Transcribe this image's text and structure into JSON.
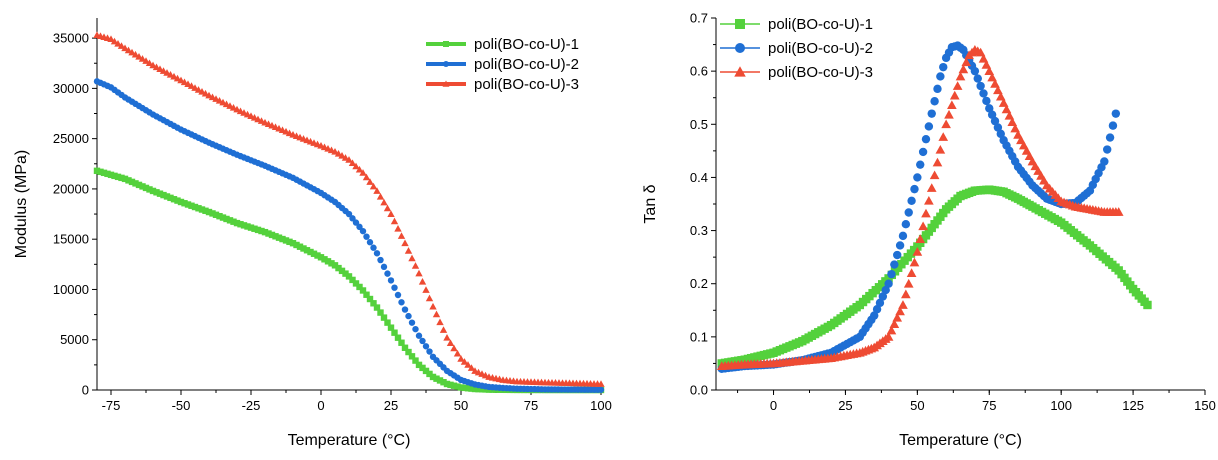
{
  "chart_data": [
    {
      "type": "line",
      "xlabel": "Temperature (°C)",
      "ylabel": "Modulus (MPa)",
      "xlim": [
        -80,
        100
      ],
      "ylim": [
        0,
        37000
      ],
      "xticks": [
        -75,
        -50,
        -25,
        0,
        25,
        50,
        75,
        100
      ],
      "yticks": [
        0,
        5000,
        10000,
        15000,
        20000,
        25000,
        30000,
        35000
      ],
      "grid": false,
      "legend": "top-right",
      "series": [
        {
          "name": "poli(BO-co-U)-1",
          "color": "#54d13c",
          "marker": "square",
          "points": [
            [
              -80,
              21800
            ],
            [
              -70,
              21000
            ],
            [
              -60,
              19800
            ],
            [
              -50,
              18700
            ],
            [
              -40,
              17700
            ],
            [
              -30,
              16600
            ],
            [
              -20,
              15700
            ],
            [
              -10,
              14600
            ],
            [
              0,
              13200
            ],
            [
              5,
              12400
            ],
            [
              10,
              11300
            ],
            [
              15,
              9900
            ],
            [
              20,
              8200
            ],
            [
              25,
              6200
            ],
            [
              30,
              4200
            ],
            [
              35,
              2500
            ],
            [
              40,
              1300
            ],
            [
              45,
              600
            ],
            [
              50,
              250
            ],
            [
              55,
              100
            ],
            [
              60,
              40
            ],
            [
              65,
              20
            ],
            [
              70,
              10
            ],
            [
              80,
              5
            ],
            [
              100,
              2
            ]
          ]
        },
        {
          "name": "poli(BO-co-U)-2",
          "color": "#1f6fd4",
          "marker": "circle",
          "points": [
            [
              -80,
              30700
            ],
            [
              -75,
              30100
            ],
            [
              -70,
              29100
            ],
            [
              -60,
              27400
            ],
            [
              -50,
              25900
            ],
            [
              -40,
              24600
            ],
            [
              -30,
              23400
            ],
            [
              -20,
              22300
            ],
            [
              -10,
              21100
            ],
            [
              0,
              19600
            ],
            [
              5,
              18700
            ],
            [
              10,
              17500
            ],
            [
              15,
              15800
            ],
            [
              20,
              13600
            ],
            [
              25,
              10900
            ],
            [
              30,
              8000
            ],
            [
              35,
              5400
            ],
            [
              40,
              3300
            ],
            [
              45,
              1900
            ],
            [
              50,
              1000
            ],
            [
              55,
              550
            ],
            [
              60,
              300
            ],
            [
              65,
              200
            ],
            [
              70,
              130
            ],
            [
              80,
              60
            ],
            [
              100,
              20
            ]
          ]
        },
        {
          "name": "poli(BO-co-U)-3",
          "color": "#ee4b33",
          "marker": "triangle",
          "points": [
            [
              -80,
              35300
            ],
            [
              -75,
              34900
            ],
            [
              -70,
              34000
            ],
            [
              -60,
              32300
            ],
            [
              -50,
              30800
            ],
            [
              -40,
              29300
            ],
            [
              -30,
              27900
            ],
            [
              -20,
              26600
            ],
            [
              -10,
              25400
            ],
            [
              0,
              24300
            ],
            [
              5,
              23700
            ],
            [
              10,
              22900
            ],
            [
              15,
              21600
            ],
            [
              20,
              19800
            ],
            [
              25,
              17500
            ],
            [
              30,
              14600
            ],
            [
              35,
              11600
            ],
            [
              40,
              8300
            ],
            [
              45,
              5200
            ],
            [
              50,
              3100
            ],
            [
              55,
              1900
            ],
            [
              60,
              1300
            ],
            [
              65,
              1000
            ],
            [
              70,
              850
            ],
            [
              80,
              750
            ],
            [
              90,
              680
            ],
            [
              100,
              600
            ]
          ]
        }
      ]
    },
    {
      "type": "scatter",
      "xlabel": "Temperature (°C)",
      "ylabel": "Tan δ",
      "xlim": [
        -20,
        150
      ],
      "ylim": [
        0.0,
        0.7
      ],
      "xticks": [
        0,
        25,
        50,
        75,
        100,
        125,
        150
      ],
      "yticks": [
        0.0,
        0.1,
        0.2,
        0.3,
        0.4,
        0.5,
        0.6,
        0.7
      ],
      "grid": false,
      "legend": "top-left",
      "series": [
        {
          "name": "poli(BO-co-U)-1",
          "color": "#54d13c",
          "marker": "square",
          "points": [
            [
              -18,
              0.05
            ],
            [
              -10,
              0.057
            ],
            [
              0,
              0.07
            ],
            [
              10,
              0.092
            ],
            [
              20,
              0.122
            ],
            [
              30,
              0.16
            ],
            [
              40,
              0.21
            ],
            [
              50,
              0.27
            ],
            [
              55,
              0.305
            ],
            [
              60,
              0.34
            ],
            [
              65,
              0.365
            ],
            [
              70,
              0.375
            ],
            [
              75,
              0.377
            ],
            [
              80,
              0.373
            ],
            [
              85,
              0.36
            ],
            [
              90,
              0.345
            ],
            [
              100,
              0.315
            ],
            [
              110,
              0.272
            ],
            [
              120,
              0.225
            ],
            [
              125,
              0.19
            ],
            [
              130,
              0.16
            ]
          ]
        },
        {
          "name": "poli(BO-co-U)-2",
          "color": "#1f6fd4",
          "marker": "circle",
          "points": [
            [
              -18,
              0.04
            ],
            [
              -10,
              0.045
            ],
            [
              0,
              0.048
            ],
            [
              10,
              0.056
            ],
            [
              20,
              0.07
            ],
            [
              30,
              0.1
            ],
            [
              35,
              0.14
            ],
            [
              40,
              0.2
            ],
            [
              45,
              0.29
            ],
            [
              50,
              0.4
            ],
            [
              55,
              0.52
            ],
            [
              58,
              0.59
            ],
            [
              60,
              0.625
            ],
            [
              62,
              0.645
            ],
            [
              64,
              0.648
            ],
            [
              66,
              0.64
            ],
            [
              70,
              0.6
            ],
            [
              75,
              0.53
            ],
            [
              80,
              0.47
            ],
            [
              85,
              0.42
            ],
            [
              90,
              0.385
            ],
            [
              95,
              0.36
            ],
            [
              100,
              0.35
            ],
            [
              105,
              0.352
            ],
            [
              110,
              0.375
            ],
            [
              115,
              0.43
            ],
            [
              119,
              0.52
            ]
          ]
        },
        {
          "name": "poli(BO-co-U)-3",
          "color": "#ee4b33",
          "marker": "triangle",
          "points": [
            [
              -18,
              0.045
            ],
            [
              -10,
              0.048
            ],
            [
              0,
              0.05
            ],
            [
              10,
              0.055
            ],
            [
              20,
              0.06
            ],
            [
              30,
              0.07
            ],
            [
              35,
              0.08
            ],
            [
              40,
              0.1
            ],
            [
              45,
              0.16
            ],
            [
              50,
              0.26
            ],
            [
              55,
              0.38
            ],
            [
              60,
              0.5
            ],
            [
              65,
              0.59
            ],
            [
              68,
              0.63
            ],
            [
              70,
              0.64
            ],
            [
              72,
              0.635
            ],
            [
              75,
              0.6
            ],
            [
              80,
              0.54
            ],
            [
              85,
              0.48
            ],
            [
              90,
              0.43
            ],
            [
              95,
              0.385
            ],
            [
              100,
              0.355
            ],
            [
              105,
              0.345
            ],
            [
              110,
              0.34
            ],
            [
              115,
              0.335
            ],
            [
              120,
              0.335
            ]
          ]
        }
      ]
    }
  ]
}
